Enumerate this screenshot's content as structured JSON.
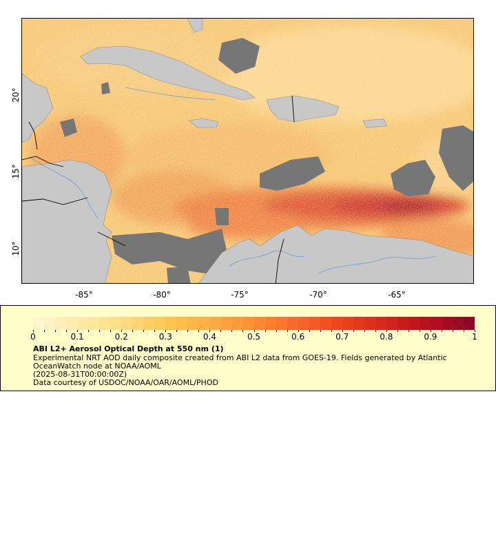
{
  "map": {
    "lat_ticks": [
      "20°",
      "15°",
      "10°"
    ],
    "lon_ticks": [
      "-85°",
      "-80°",
      "-75°",
      "-70°",
      "-65°"
    ]
  },
  "legend": {
    "colorbar_ticks": [
      "0",
      "0.1",
      "0.2",
      "0.3",
      "0.4",
      "0.5",
      "0.6",
      "0.7",
      "0.8",
      "0.9",
      "1"
    ],
    "title": "ABI L2+ Aerosol Optical Depth at 550 nm (1)",
    "description": "Experimental NRT AOD daily composite created from ABI L2 data from GOES-19. Fields generated by Atlantic OceanWatch node at NOAA/AOML",
    "date": "(2025-08-31T00:00:00Z)",
    "credit": "Data courtesy of USDOC/NOAA/OAR/AOML/PHOD"
  },
  "colors": {
    "land": "#c8c8c8",
    "no_data": "#767676",
    "aod_scale": [
      "#fff5cf",
      "#feecb0",
      "#fee391",
      "#fed476",
      "#fec44f",
      "#fdb046",
      "#fd9a3c",
      "#fc7e31",
      "#f86226",
      "#f0461f",
      "#e02f1c",
      "#cc1a1c",
      "#b10c22",
      "#8b0a26"
    ]
  }
}
